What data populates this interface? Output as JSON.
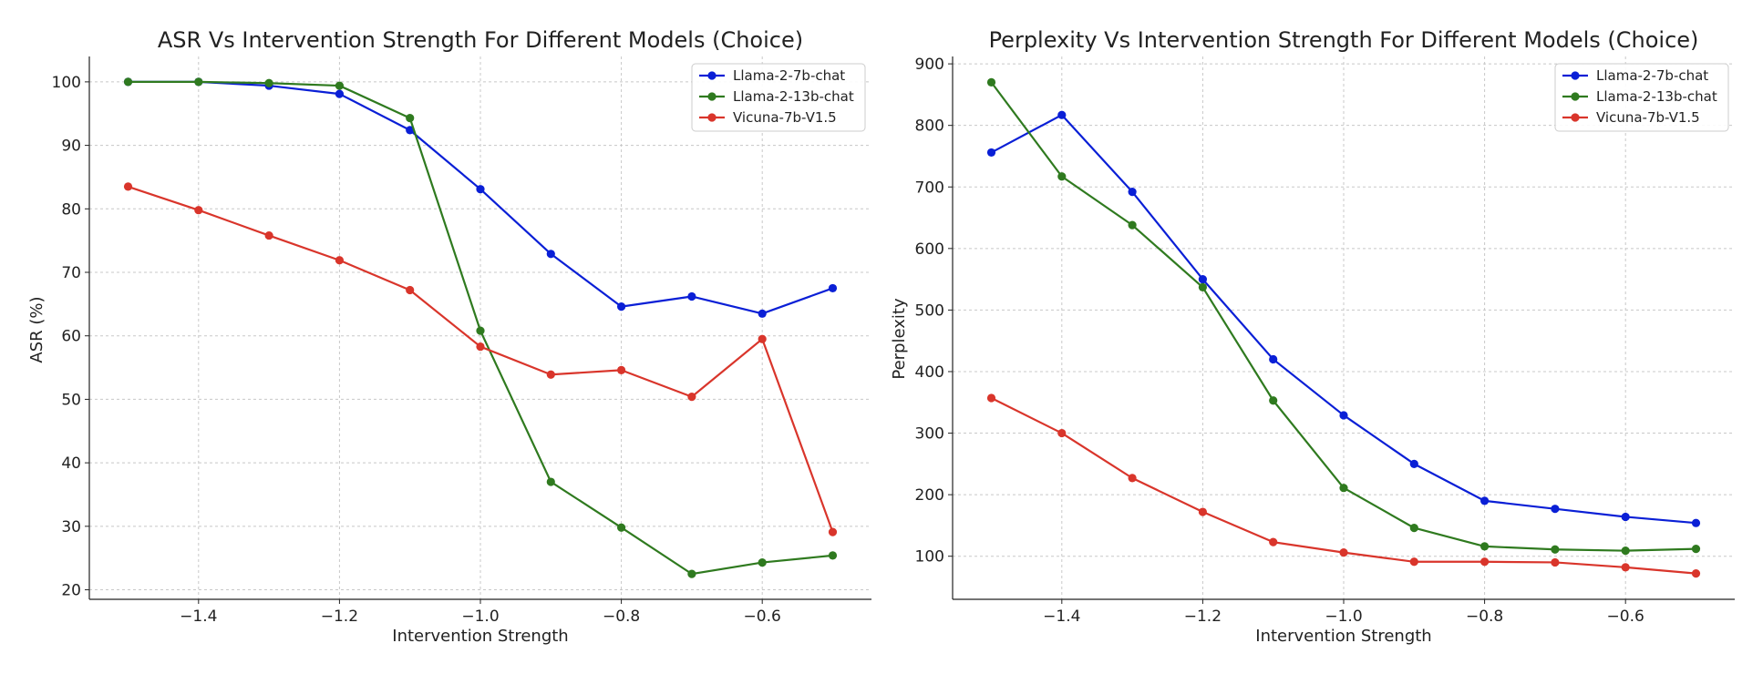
{
  "chart_data": [
    {
      "type": "line",
      "title": "ASR Vs Intervention Strength For Different Models (Choice)",
      "xlabel": "Intervention Strength",
      "ylabel": "ASR (%)",
      "x": [
        -1.5,
        -1.4,
        -1.3,
        -1.2,
        -1.1,
        -1.0,
        -0.9,
        -0.8,
        -0.7,
        -0.6,
        -0.5
      ],
      "xticks": [
        -1.4,
        -1.2,
        -1.0,
        -0.8,
        -0.6
      ],
      "xtick_labels": [
        "−1.4",
        "−1.2",
        "−1.0",
        "−0.8",
        "−0.6"
      ],
      "yticks": [
        20,
        30,
        40,
        50,
        60,
        70,
        80,
        90,
        100
      ],
      "ytick_labels": [
        "20",
        "30",
        "40",
        "50",
        "60",
        "70",
        "80",
        "90",
        "100"
      ],
      "xlim": [
        -1.555,
        -0.445
      ],
      "ylim": [
        18.5,
        104
      ],
      "grid": true,
      "legend": "top-right",
      "series": [
        {
          "name": "Llama-2-7b-chat",
          "color": "#0a1fd6",
          "values": [
            100,
            100,
            99.4,
            98.1,
            92.4,
            83.1,
            72.9,
            64.6,
            66.2,
            63.5,
            67.5
          ]
        },
        {
          "name": "Llama-2-13b-chat",
          "color": "#2f7a1f",
          "values": [
            100,
            100,
            99.8,
            99.4,
            94.3,
            60.8,
            37.0,
            29.8,
            22.5,
            24.3,
            25.4
          ]
        },
        {
          "name": "Vicuna-7b-V1.5",
          "color": "#d9352b",
          "values": [
            83.5,
            79.8,
            75.8,
            71.9,
            67.2,
            58.3,
            53.9,
            54.6,
            50.4,
            59.5,
            29.1
          ]
        }
      ]
    },
    {
      "type": "line",
      "title": "Perplexity Vs Intervention Strength For Different Models (Choice)",
      "xlabel": "Intervention Strength",
      "ylabel": "Perplexity",
      "x": [
        -1.5,
        -1.4,
        -1.3,
        -1.2,
        -1.1,
        -1.0,
        -0.9,
        -0.8,
        -0.7,
        -0.6,
        -0.5
      ],
      "xticks": [
        -1.4,
        -1.2,
        -1.0,
        -0.8,
        -0.6
      ],
      "xtick_labels": [
        "−1.4",
        "−1.2",
        "−1.0",
        "−0.8",
        "−0.6"
      ],
      "yticks": [
        100,
        200,
        300,
        400,
        500,
        600,
        700,
        800,
        900
      ],
      "ytick_labels": [
        "100",
        "200",
        "300",
        "400",
        "500",
        "600",
        "700",
        "800",
        "900"
      ],
      "xlim": [
        -1.555,
        -0.445
      ],
      "ylim": [
        30,
        912
      ],
      "grid": true,
      "legend": "top-right",
      "series": [
        {
          "name": "Llama-2-7b-chat",
          "color": "#0a1fd6",
          "values": [
            756,
            817,
            692,
            550,
            420,
            329,
            250,
            190,
            177,
            164,
            154
          ]
        },
        {
          "name": "Llama-2-13b-chat",
          "color": "#2f7a1f",
          "values": [
            870,
            717,
            638,
            537,
            353,
            211,
            146,
            116,
            111,
            109,
            112
          ]
        },
        {
          "name": "Vicuna-7b-V1.5",
          "color": "#d9352b",
          "values": [
            357,
            300,
            227,
            172,
            123,
            106,
            91,
            91,
            90,
            82,
            72
          ]
        }
      ]
    }
  ]
}
